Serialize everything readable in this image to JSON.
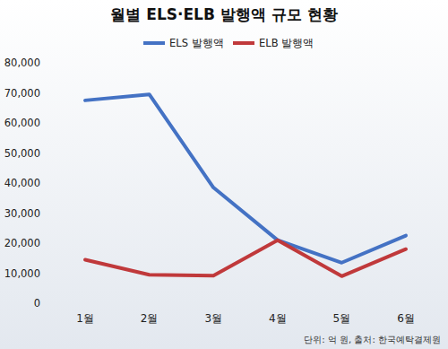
{
  "chart_data": {
    "type": "line",
    "title": "월별 ELS·ELB 발행액 규모 현황",
    "annotations": [
      "단위: 억 원, 출처: 한국예탁결제원"
    ],
    "categories": [
      "1월",
      "2월",
      "3월",
      "4월",
      "5월",
      "6월"
    ],
    "series": [
      {
        "name": "ELS 발행액",
        "color": "#4472c4",
        "values": [
          67500,
          69500,
          38500,
          21000,
          13500,
          22500
        ]
      },
      {
        "name": "ELB 발행액",
        "color": "#c0393b",
        "values": [
          14500,
          9500,
          9200,
          21000,
          9000,
          18000
        ]
      }
    ],
    "ylim": [
      0,
      80000
    ],
    "yticks": [
      0,
      {
        "value": 10000,
        "label": "10,000"
      },
      {
        "value": 20000,
        "label": "20,000"
      },
      {
        "value": 30000,
        "label": "30,000"
      },
      {
        "value": 40000,
        "label": "40,000"
      },
      {
        "value": 50000,
        "label": "50,000"
      },
      {
        "value": 60000,
        "label": "60,000"
      },
      {
        "value": 70000,
        "label": "70,000"
      },
      {
        "value": 80000,
        "label": "80,000"
      }
    ],
    "grid": false,
    "legend": "top"
  }
}
